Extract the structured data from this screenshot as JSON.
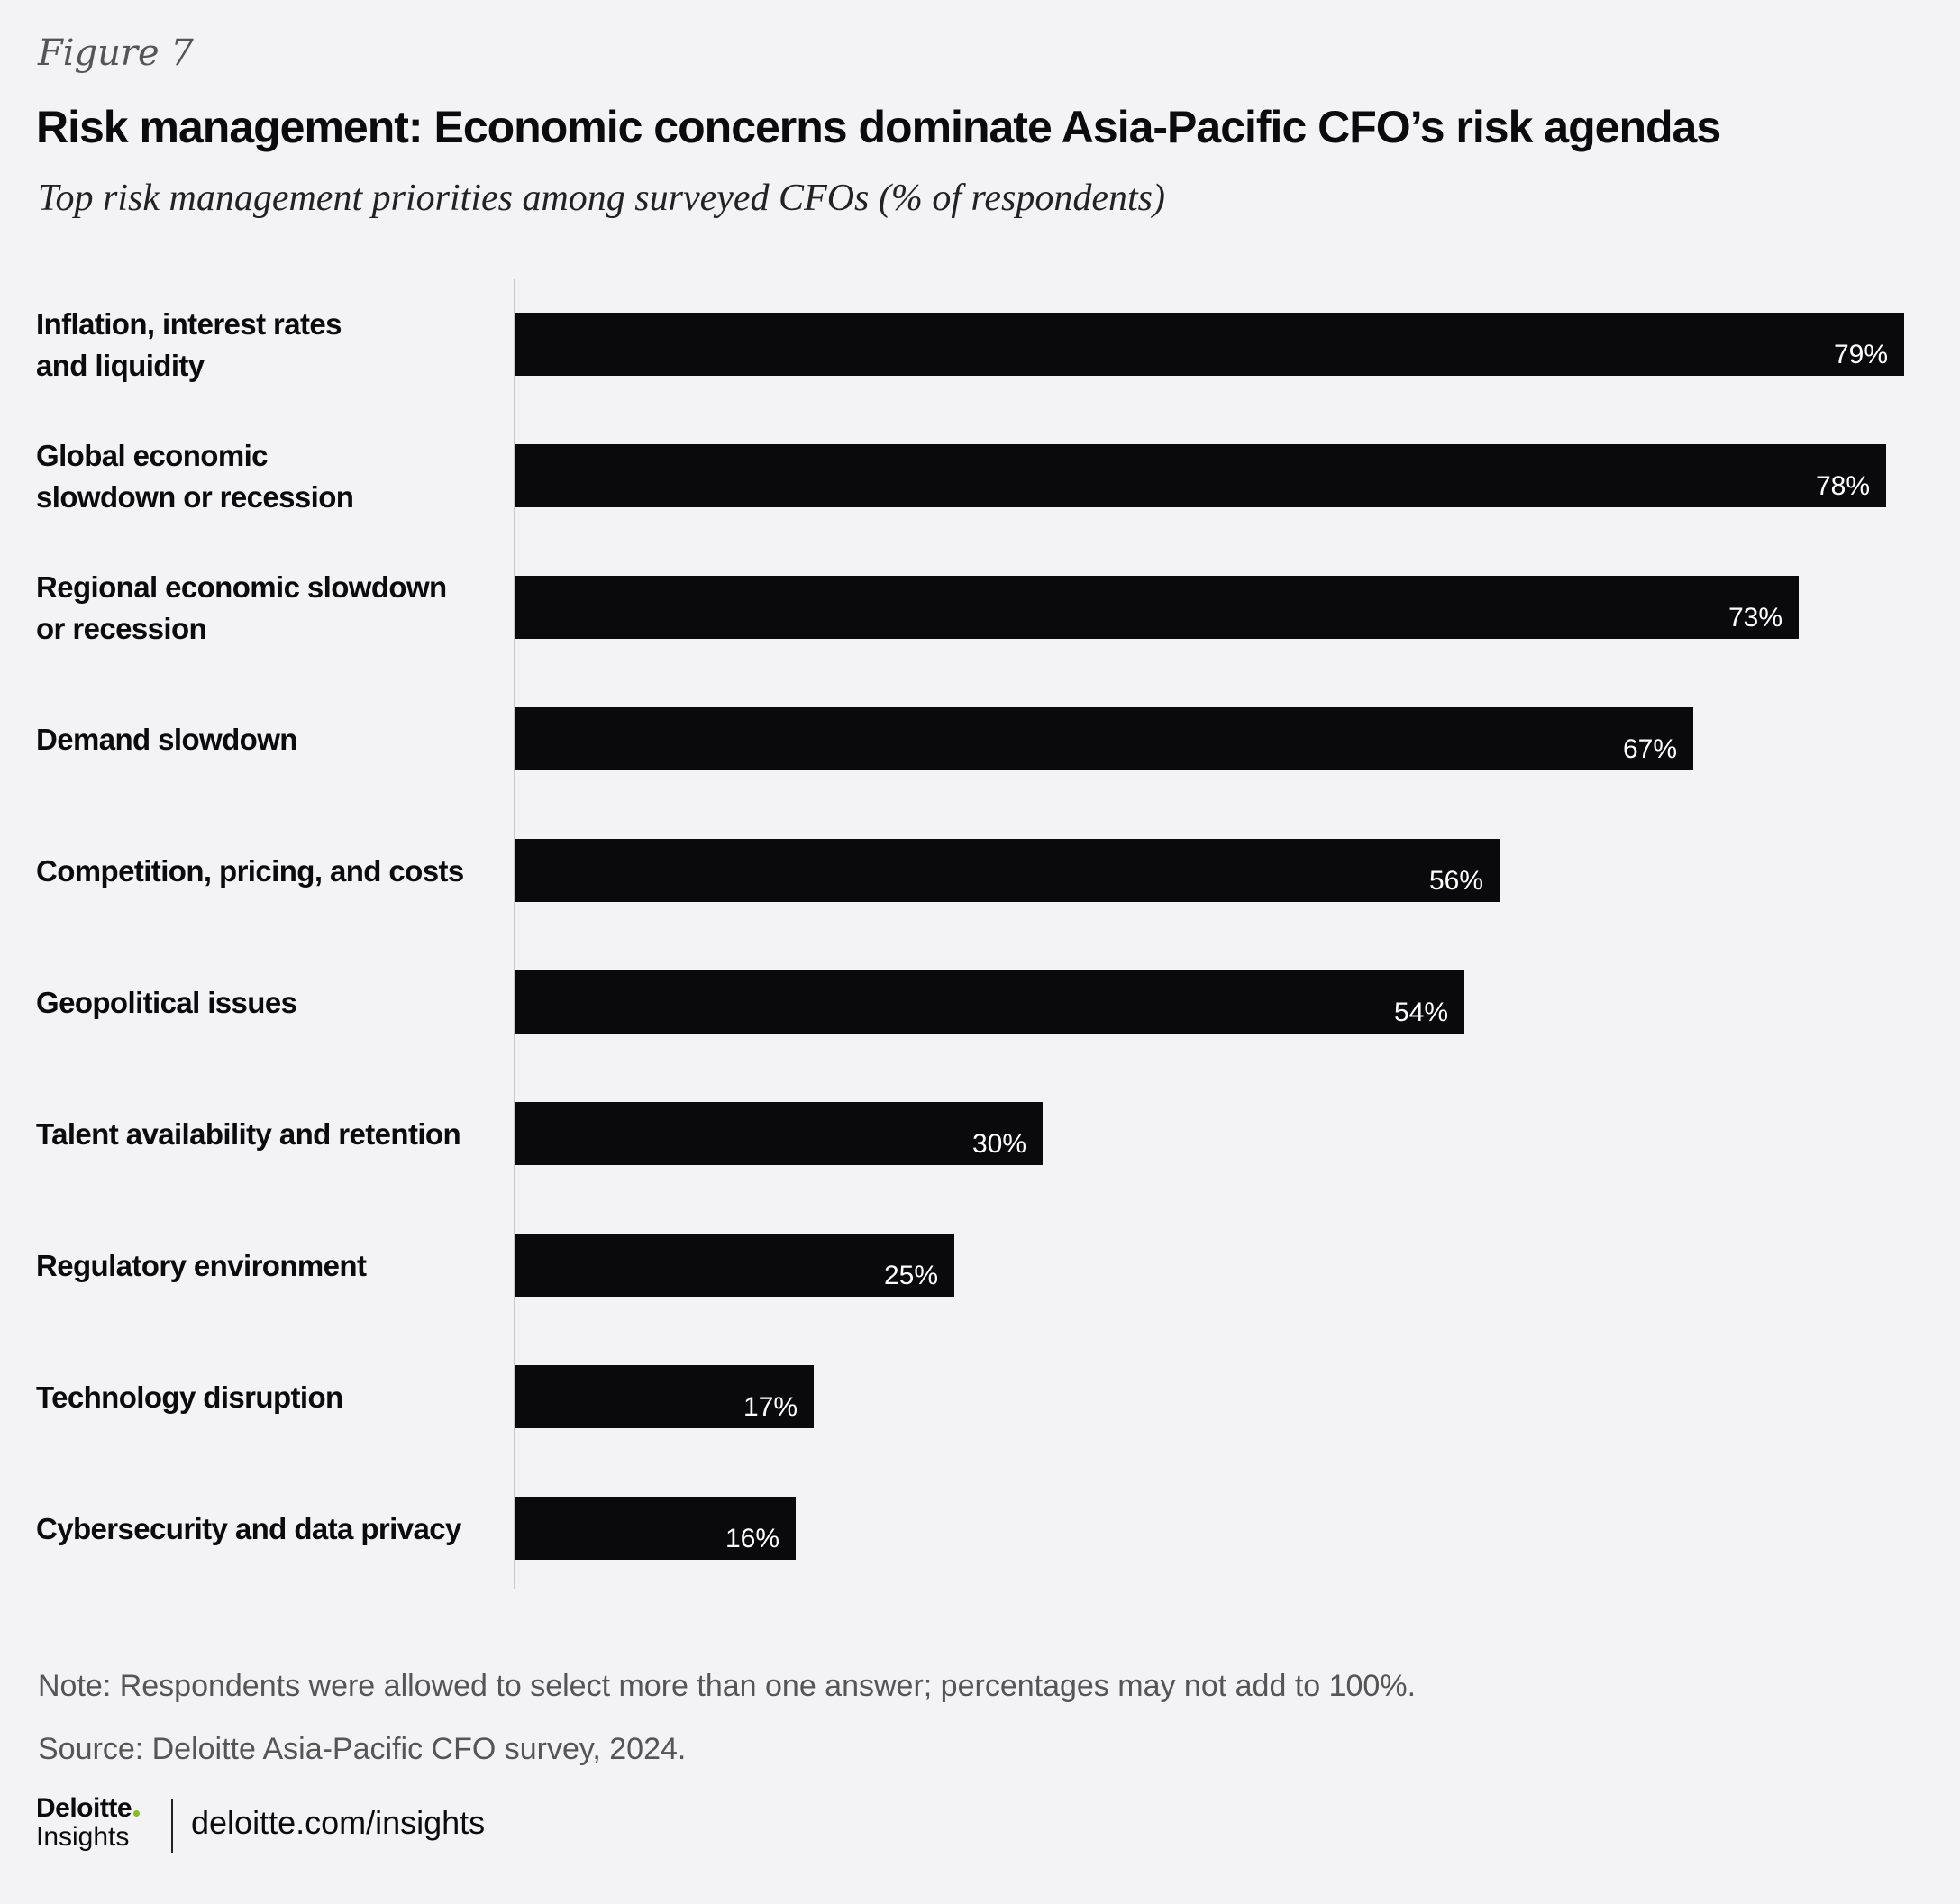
{
  "figure_label": "Figure 7",
  "chart_data": {
    "type": "bar",
    "orientation": "horizontal",
    "title": "Risk management: Economic concerns dominate Asia-Pacific CFO’s risk agendas",
    "subtitle": "Top risk management priorities among surveyed CFOs (% of respondents)",
    "categories": [
      "Inflation, interest rates\nand liquidity",
      "Global economic\nslowdown or recession",
      "Regional economic slowdown\nor recession",
      "Demand slowdown",
      "Competition, pricing, and costs",
      "Geopolitical issues",
      "Talent availability and retention",
      "Regulatory environment",
      "Technology disruption",
      "Cybersecurity and data privacy"
    ],
    "values": [
      79,
      78,
      73,
      67,
      56,
      54,
      30,
      25,
      17,
      16
    ],
    "value_labels": [
      "79%",
      "78%",
      "73%",
      "67%",
      "56%",
      "54%",
      "30%",
      "25%",
      "17%",
      "16%"
    ],
    "bar_color": "#0a0a0c",
    "grid": false,
    "legend": "none"
  },
  "footer": {
    "note": "Note: Respondents were allowed to select more than one answer; percentages may not add to 100%.",
    "source": "Source: Deloitte Asia-Pacific CFO survey, 2024.",
    "brand_name": "Deloitte",
    "brand_sub": "Insights",
    "brand_dot_color": "#86bc25",
    "site": "deloitte.com/insights"
  }
}
